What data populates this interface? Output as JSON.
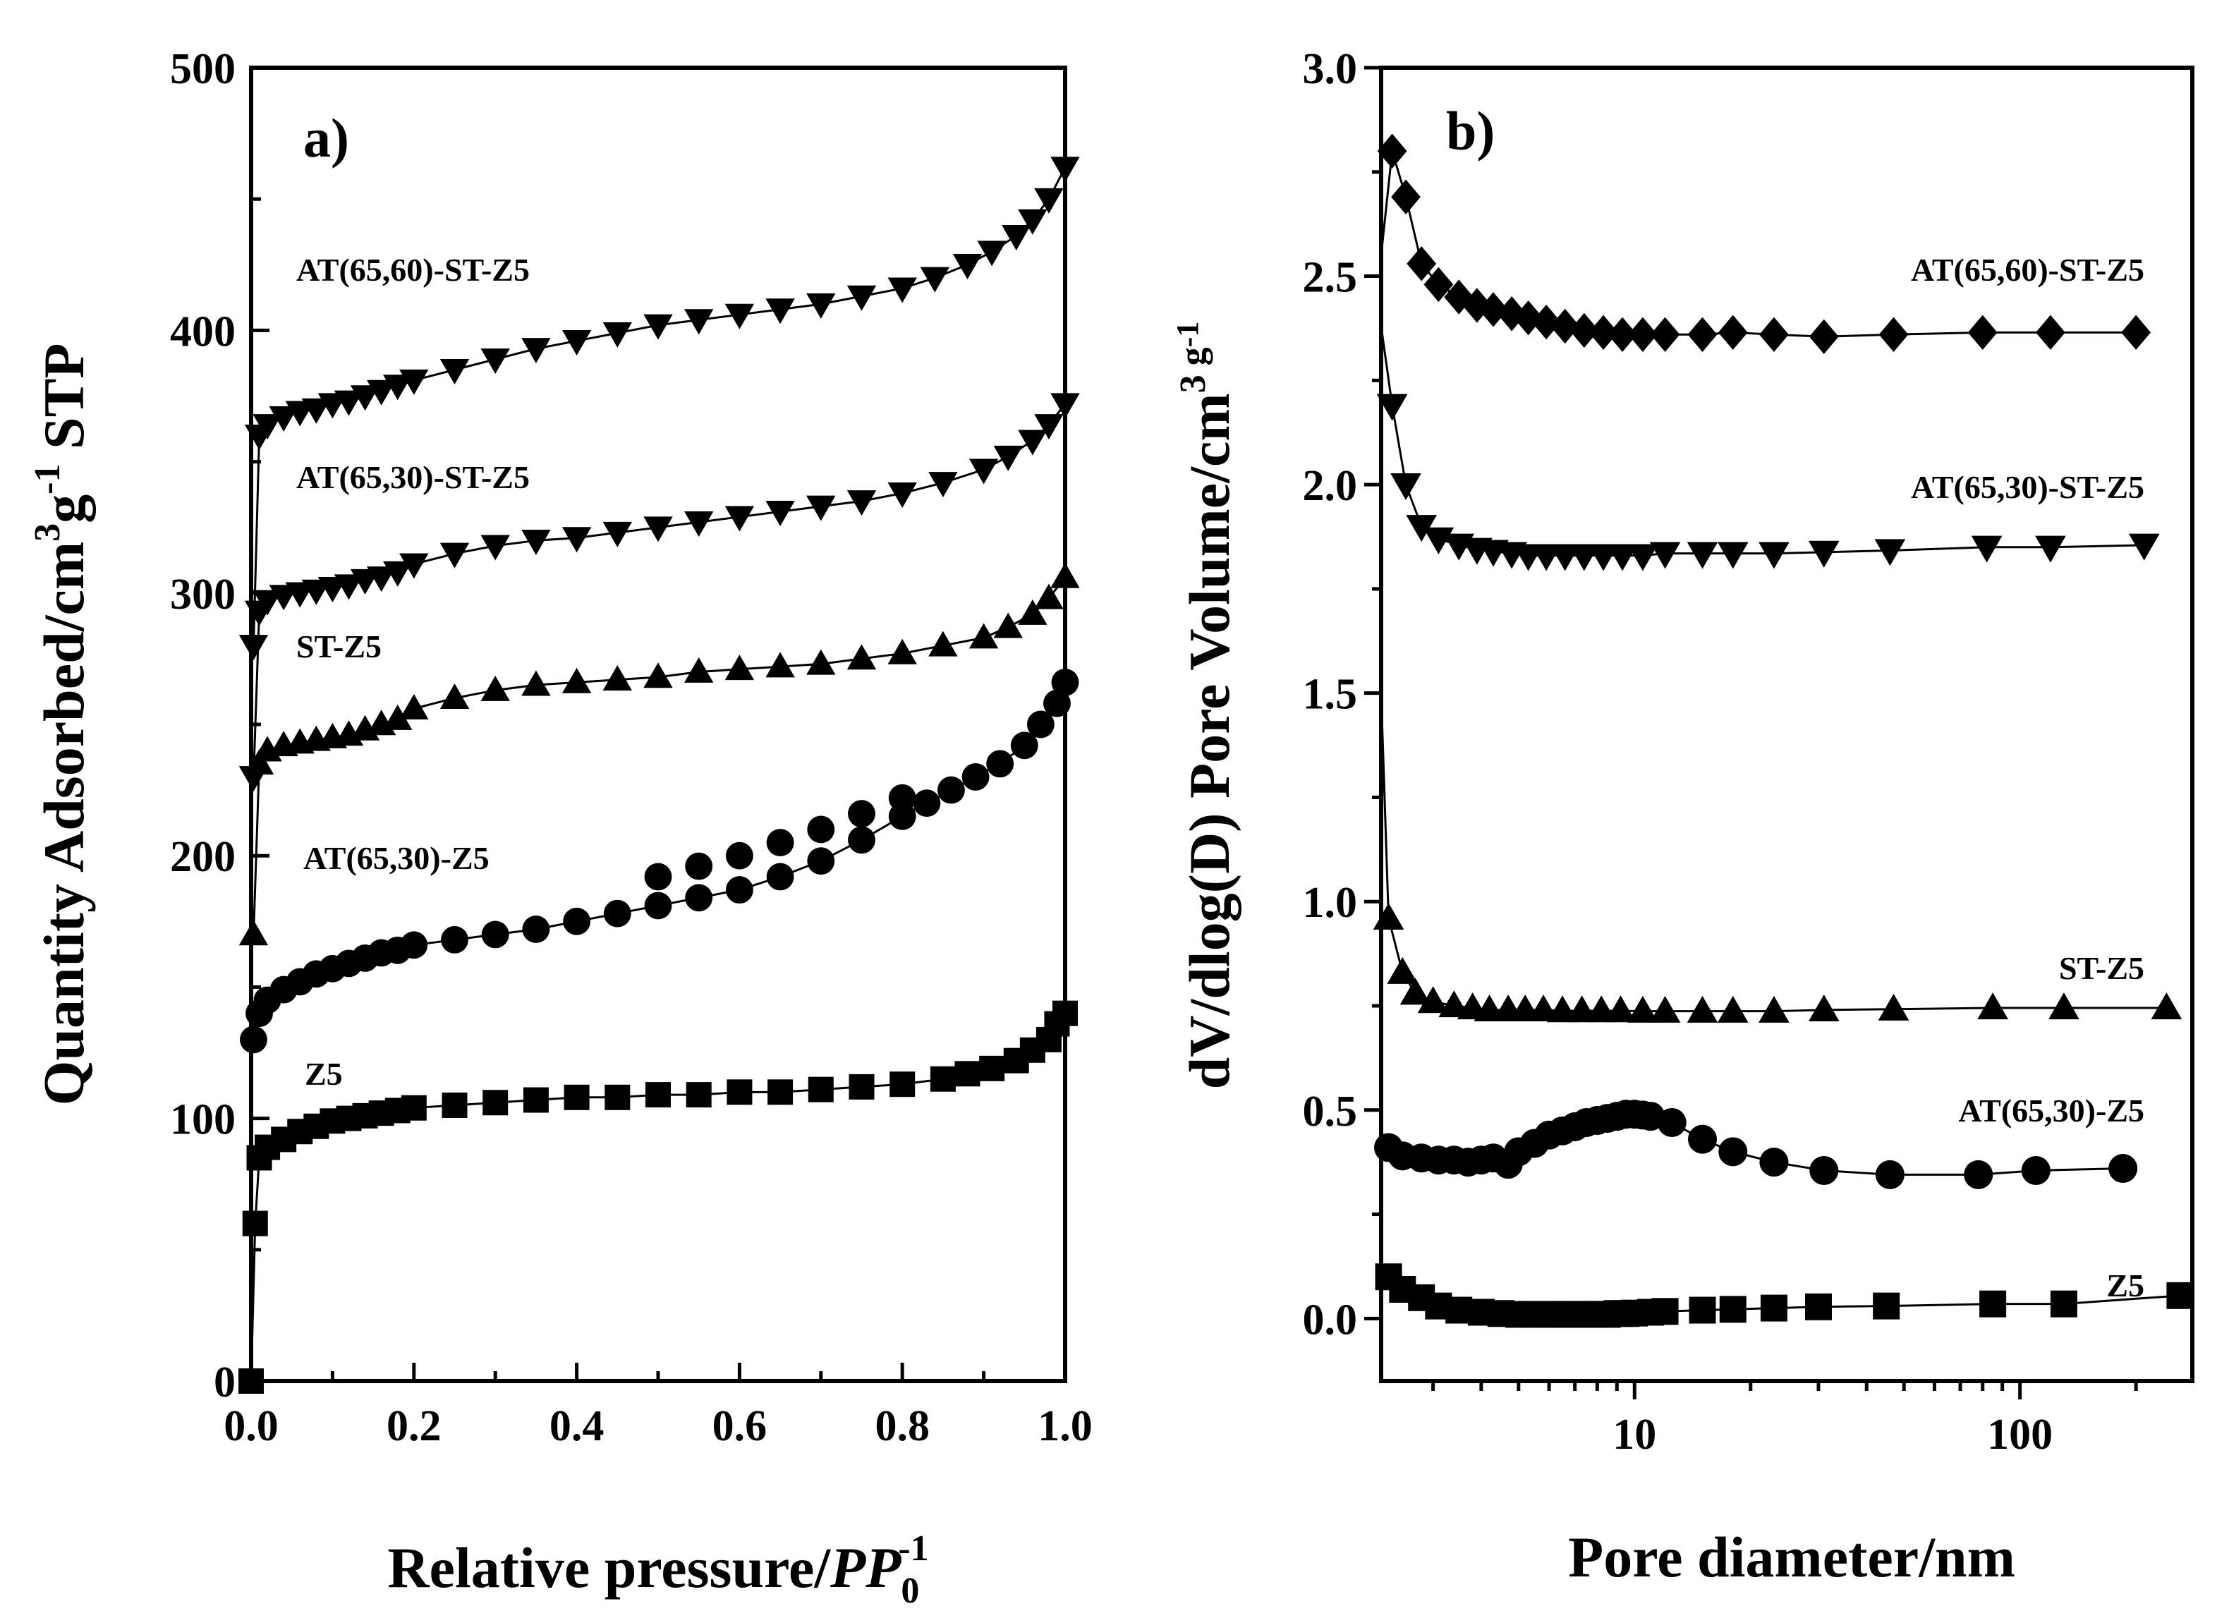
{
  "chart_data": [
    {
      "type": "scatter",
      "panel": "a)",
      "title": "",
      "xlabel": "Relative pressure/",
      "xlabel_italic": "PP",
      "xlabel_sub": "0",
      "xlabel_sup": "-1",
      "ylabel": "Quantity Adsorbed/cm",
      "ylabel_sup1": "3",
      "ylabel_mid": "g",
      "ylabel_sup2": "-1",
      "ylabel_end": " STP",
      "xlim": [
        0.0,
        1.0
      ],
      "ylim": [
        0,
        500
      ],
      "xticks": [
        "0.0",
        "0.2",
        "0.4",
        "0.6",
        "0.8",
        "1.0"
      ],
      "yticks": [
        "0",
        "100",
        "200",
        "300",
        "400",
        "500"
      ],
      "series": [
        {
          "name": "Z5",
          "marker": "square",
          "label": "Z5",
          "x": [
            0.0,
            0.005,
            0.01,
            0.02,
            0.04,
            0.06,
            0.08,
            0.1,
            0.12,
            0.14,
            0.16,
            0.18,
            0.2,
            0.25,
            0.3,
            0.35,
            0.4,
            0.45,
            0.5,
            0.55,
            0.6,
            0.65,
            0.7,
            0.75,
            0.8,
            0.85,
            0.88,
            0.91,
            0.94,
            0.96,
            0.98,
            0.99,
            1.0
          ],
          "y": [
            0,
            60,
            85,
            89,
            92,
            95,
            97,
            99,
            100,
            101,
            102,
            103,
            104,
            105,
            106,
            107,
            108,
            108,
            109,
            109,
            110,
            110,
            111,
            112,
            113,
            115,
            117,
            119,
            122,
            126,
            130,
            136,
            140
          ]
        },
        {
          "name": "AT(65,30)-Z5",
          "marker": "circle",
          "label": "AT(65,30)-Z5",
          "x": [
            0.003,
            0.01,
            0.02,
            0.04,
            0.06,
            0.08,
            0.1,
            0.12,
            0.14,
            0.16,
            0.18,
            0.2,
            0.25,
            0.3,
            0.35,
            0.4,
            0.45,
            0.5,
            0.55,
            0.6,
            0.65,
            0.7,
            0.75,
            0.8,
            0.83,
            0.86,
            0.89,
            0.92,
            0.95,
            0.97,
            0.99,
            1.0
          ],
          "y": [
            130,
            140,
            145,
            149,
            152,
            155,
            157,
            159,
            161,
            163,
            164,
            166,
            168,
            170,
            172,
            175,
            178,
            181,
            184,
            187,
            192,
            198,
            206,
            215,
            220,
            225,
            230,
            235,
            242,
            250,
            258,
            266
          ],
          "desorption_x": [
            0.5,
            0.55,
            0.6,
            0.65,
            0.7,
            0.75,
            0.8
          ],
          "desorption_y": [
            192,
            196,
            200,
            205,
            210,
            216,
            222
          ]
        },
        {
          "name": "ST-Z5",
          "marker": "triangle-up",
          "label": "ST-Z5",
          "x": [
            0.003,
            0.01,
            0.02,
            0.04,
            0.06,
            0.08,
            0.1,
            0.12,
            0.14,
            0.16,
            0.18,
            0.2,
            0.25,
            0.3,
            0.35,
            0.4,
            0.45,
            0.5,
            0.55,
            0.6,
            0.65,
            0.7,
            0.75,
            0.8,
            0.85,
            0.9,
            0.93,
            0.96,
            0.98,
            1.0
          ],
          "y": [
            170,
            235,
            240,
            242,
            243,
            244,
            245,
            246,
            248,
            250,
            252,
            256,
            260,
            263,
            265,
            266,
            267,
            268,
            270,
            271,
            272,
            273,
            275,
            277,
            280,
            283,
            287,
            292,
            298,
            306
          ]
        },
        {
          "name": "AT(65,30)-ST-Z5",
          "marker": "triangle-down",
          "label": "AT(65,30)-ST-Z5",
          "x": [
            0.003,
            0.01,
            0.02,
            0.04,
            0.06,
            0.08,
            0.1,
            0.12,
            0.14,
            0.16,
            0.18,
            0.2,
            0.25,
            0.3,
            0.35,
            0.4,
            0.45,
            0.5,
            0.55,
            0.6,
            0.65,
            0.7,
            0.75,
            0.8,
            0.85,
            0.9,
            0.93,
            0.96,
            0.98,
            1.0
          ],
          "y": [
            230,
            293,
            297,
            299,
            300,
            301,
            302,
            303,
            305,
            306,
            308,
            311,
            315,
            318,
            320,
            321,
            323,
            325,
            327,
            329,
            331,
            333,
            335,
            338,
            342,
            347,
            352,
            358,
            364,
            372
          ]
        },
        {
          "name": "AT(65,60)-ST-Z5",
          "marker": "triangle-down",
          "label": "AT(65,60)-ST-Z5",
          "x": [
            0.003,
            0.01,
            0.02,
            0.04,
            0.06,
            0.08,
            0.1,
            0.12,
            0.14,
            0.16,
            0.18,
            0.2,
            0.25,
            0.3,
            0.35,
            0.4,
            0.45,
            0.5,
            0.55,
            0.6,
            0.65,
            0.7,
            0.75,
            0.8,
            0.84,
            0.88,
            0.91,
            0.94,
            0.96,
            0.98,
            1.0
          ],
          "y": [
            280,
            360,
            364,
            367,
            369,
            370,
            372,
            373,
            375,
            377,
            379,
            381,
            385,
            389,
            393,
            396,
            399,
            402,
            404,
            406,
            408,
            410,
            413,
            416,
            420,
            425,
            430,
            436,
            442,
            450,
            462
          ]
        }
      ]
    },
    {
      "type": "scatter",
      "panel": "b)",
      "title": "",
      "xlabel": "Pore diameter/nm",
      "xscale": "log",
      "ylabel": "dV/dlog(D) Pore Volume/cm",
      "ylabel_sup1": "3",
      "ylabel_mid": " g",
      "ylabel_sup2": "-1",
      "xlim": [
        2.2,
        280
      ],
      "ylim": [
        -0.15,
        3.0
      ],
      "xticks": [
        "10",
        "100"
      ],
      "yticks": [
        "0.0",
        "0.5",
        "1.0",
        "1.5",
        "2.0",
        "2.5",
        "3.0"
      ],
      "series": [
        {
          "name": "Z5",
          "marker": "square",
          "label": "Z5",
          "x": [
            2.3,
            2.5,
            2.8,
            3.1,
            3.5,
            4.0,
            4.5,
            5.0,
            5.5,
            6.0,
            6.5,
            7.0,
            7.5,
            8.0,
            8.5,
            9.0,
            9.5,
            10.0,
            11.0,
            12.0,
            15.0,
            18.0,
            23.0,
            30.0,
            45.0,
            85.0,
            130.0,
            260.0
          ],
          "y": [
            0.1,
            0.07,
            0.05,
            0.03,
            0.02,
            0.015,
            0.012,
            0.01,
            0.01,
            0.01,
            0.01,
            0.01,
            0.01,
            0.01,
            0.01,
            0.012,
            0.012,
            0.013,
            0.015,
            0.017,
            0.02,
            0.022,
            0.025,
            0.028,
            0.03,
            0.035,
            0.035,
            0.055
          ]
        },
        {
          "name": "AT(65,30)-Z5",
          "marker": "circle",
          "label": "AT(65,30)-Z5",
          "x": [
            2.3,
            2.5,
            2.8,
            3.1,
            3.4,
            3.7,
            4.0,
            4.3,
            4.7,
            5.0,
            5.5,
            6.0,
            6.5,
            7.0,
            7.5,
            8.0,
            8.5,
            9.0,
            9.5,
            10.0,
            10.5,
            11.0,
            12.5,
            15.0,
            18.0,
            23.0,
            31.0,
            46.0,
            78.0,
            110.0,
            185.0
          ],
          "y": [
            0.41,
            0.39,
            0.385,
            0.38,
            0.38,
            0.375,
            0.38,
            0.385,
            0.37,
            0.4,
            0.42,
            0.44,
            0.45,
            0.46,
            0.47,
            0.475,
            0.48,
            0.485,
            0.49,
            0.49,
            0.488,
            0.485,
            0.47,
            0.43,
            0.4,
            0.375,
            0.355,
            0.345,
            0.345,
            0.355,
            0.36
          ]
        },
        {
          "name": "ST-Z5",
          "marker": "triangle-up",
          "label": "ST-Z5",
          "x": [
            2.2,
            2.3,
            2.5,
            2.7,
            3.0,
            3.4,
            3.8,
            4.2,
            4.7,
            5.2,
            5.8,
            6.5,
            7.3,
            8.2,
            9.2,
            10.5,
            12.0,
            15.0,
            18.0,
            23.0,
            31.0,
            47.0,
            85.0,
            130.0,
            240.0
          ],
          "y": [
            1.5,
            0.96,
            0.83,
            0.78,
            0.76,
            0.75,
            0.745,
            0.74,
            0.74,
            0.74,
            0.74,
            0.738,
            0.738,
            0.738,
            0.738,
            0.737,
            0.737,
            0.737,
            0.737,
            0.737,
            0.74,
            0.742,
            0.745,
            0.745,
            0.745
          ]
        },
        {
          "name": "AT(65,30)-ST-Z5",
          "marker": "triangle-down",
          "label": "AT(65,30)-ST-Z5",
          "x": [
            2.2,
            2.35,
            2.55,
            2.8,
            3.1,
            3.5,
            3.9,
            4.3,
            4.8,
            5.3,
            5.9,
            6.6,
            7.4,
            8.3,
            9.3,
            10.5,
            12.0,
            15.0,
            18.0,
            23.0,
            31.0,
            46.0,
            82.0,
            120.0,
            210.0
          ],
          "y": [
            2.38,
            2.19,
            2.0,
            1.9,
            1.87,
            1.855,
            1.845,
            1.84,
            1.835,
            1.83,
            1.83,
            1.83,
            1.83,
            1.83,
            1.83,
            1.83,
            1.835,
            1.835,
            1.835,
            1.835,
            1.838,
            1.842,
            1.85,
            1.85,
            1.855
          ]
        },
        {
          "name": "AT(65,60)-ST-Z5",
          "marker": "diamond",
          "label": "AT(65,60)-ST-Z5",
          "x": [
            2.2,
            2.35,
            2.55,
            2.8,
            3.1,
            3.5,
            3.9,
            4.3,
            4.8,
            5.3,
            5.9,
            6.6,
            7.4,
            8.3,
            9.3,
            10.5,
            12.0,
            15.0,
            18.0,
            23.0,
            31.0,
            47.0,
            80.0,
            120.0,
            200.0
          ],
          "y": [
            2.55,
            2.8,
            2.69,
            2.53,
            2.48,
            2.45,
            2.43,
            2.42,
            2.41,
            2.4,
            2.39,
            2.38,
            2.37,
            2.365,
            2.36,
            2.36,
            2.36,
            2.36,
            2.365,
            2.36,
            2.355,
            2.36,
            2.365,
            2.365,
            2.365
          ]
        }
      ]
    }
  ]
}
